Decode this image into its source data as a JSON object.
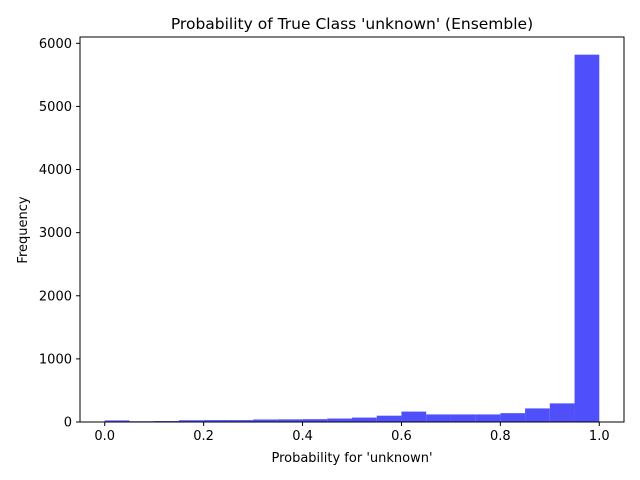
{
  "chart_data": {
    "type": "bar",
    "subtype": "histogram",
    "title": "Probability of True Class 'unknown' (Ensemble)",
    "xlabel": "Probability for 'unknown'",
    "ylabel": "Frequency",
    "xlim": [
      -0.05,
      1.05
    ],
    "ylim": [
      0,
      6100
    ],
    "xticks": [
      0.0,
      0.2,
      0.4,
      0.6,
      0.8,
      1.0
    ],
    "xtick_labels": [
      "0.0",
      "0.2",
      "0.4",
      "0.6",
      "0.8",
      "1.0"
    ],
    "yticks": [
      0,
      1000,
      2000,
      3000,
      4000,
      5000,
      6000
    ],
    "ytick_labels": [
      "0",
      "1000",
      "2000",
      "3000",
      "4000",
      "5000",
      "6000"
    ],
    "bin_edges": [
      0.0,
      0.05,
      0.1,
      0.15,
      0.2,
      0.25,
      0.3,
      0.35,
      0.4,
      0.45,
      0.5,
      0.55,
      0.6,
      0.65,
      0.7,
      0.75,
      0.8,
      0.85,
      0.9,
      0.95,
      1.0
    ],
    "values": [
      25,
      12,
      15,
      28,
      30,
      30,
      40,
      42,
      45,
      55,
      70,
      100,
      165,
      120,
      120,
      120,
      140,
      215,
      295,
      5820
    ],
    "bar_color": "#4f4ffb",
    "grid": false,
    "legend": false
  }
}
